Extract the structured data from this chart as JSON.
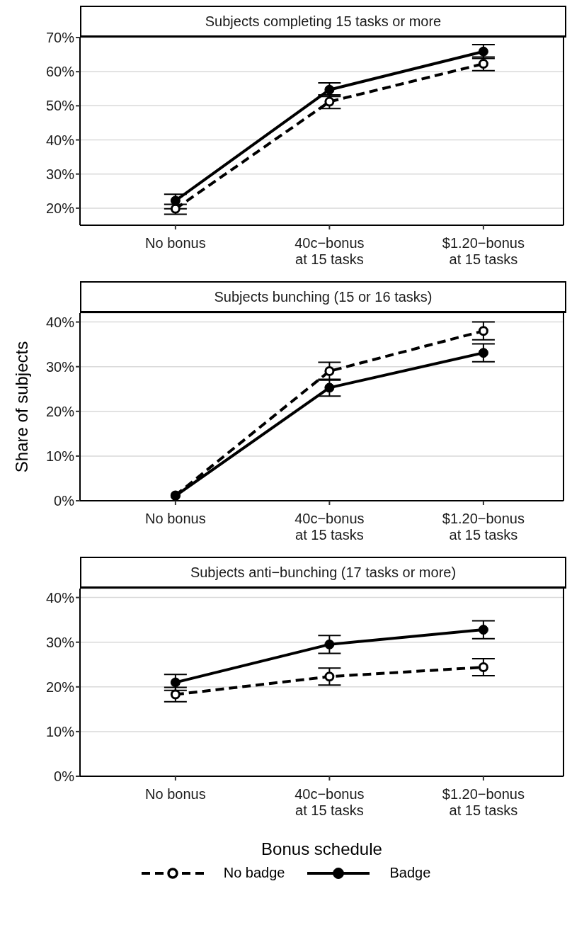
{
  "chart_data": [
    {
      "type": "line",
      "title": "Subjects completing 15 tasks or more",
      "categories": [
        "No bonus",
        "40c−bonus\nat 15 tasks",
        "$1.20−bonus\nat 15 tasks"
      ],
      "series": [
        {
          "color": "#000000",
          "line_style": "dashed",
          "marker": "circle",
          "values": [
            19.8,
            51.2,
            62.3
          ],
          "errors": [
            [
              18.2,
              19.8
            ],
            2,
            2
          ]
        },
        {
          "color": "#000000",
          "line_style": "solid",
          "marker": "circle",
          "values": [
            22.2,
            54.7,
            65.9
          ],
          "errors": [
            [
              21.1,
              24.1
            ],
            2,
            2
          ]
        }
      ],
      "ylim": [
        15,
        70
      ],
      "yticks": [
        {
          "value": 20,
          "label": "20%"
        },
        {
          "value": 30,
          "label": "30%"
        },
        {
          "value": 40,
          "label": "40%"
        },
        {
          "value": 50,
          "label": "50%"
        },
        {
          "value": 60,
          "label": "60%"
        },
        {
          "value": 70,
          "label": "70%"
        }
      ],
      "grid": "y"
    },
    {
      "type": "line",
      "title": "Subjects bunching (15 or 16 tasks)",
      "ylabel": "Share of subjects",
      "categories": [
        "No bonus",
        "40c−bonus\nat 15 tasks",
        "$1.20−bonus\nat 15 tasks"
      ],
      "series": [
        {
          "color": "#000000",
          "line_style": "dashed",
          "marker": "circle",
          "values": [
            1.2,
            29,
            38
          ],
          "errors": [
            null,
            2,
            2
          ]
        },
        {
          "color": "#000000",
          "line_style": "solid",
          "marker": "circle",
          "values": [
            1.1,
            25.3,
            33.1
          ],
          "errors": [
            null,
            1.9,
            2
          ]
        }
      ],
      "ylim": [
        0,
        42
      ],
      "yticks": [
        {
          "value": 0,
          "label": "0%"
        },
        {
          "value": 10,
          "label": "10%"
        },
        {
          "value": 20,
          "label": "20%"
        },
        {
          "value": 30,
          "label": "30%"
        },
        {
          "value": 40,
          "label": "40%"
        }
      ],
      "grid": "y"
    },
    {
      "type": "line",
      "title": "Subjects anti−bunching (17 tasks or more)",
      "xlabel": "Bonus schedule",
      "categories": [
        "No bonus",
        "40c−bonus\nat 15 tasks",
        "$1.20−bonus\nat 15 tasks"
      ],
      "series": [
        {
          "name": "No badge",
          "color": "#000000",
          "line_style": "dashed",
          "marker": "circle",
          "values": [
            18.3,
            22.3,
            24.4
          ],
          "errors": [
            1.6,
            1.9,
            1.9
          ]
        },
        {
          "name": "Badge",
          "color": "#000000",
          "line_style": "solid",
          "marker": "circle",
          "values": [
            21,
            29.5,
            32.8
          ],
          "errors": [
            1.8,
            2,
            2
          ]
        }
      ],
      "ylim": [
        0,
        42
      ],
      "yticks": [
        {
          "value": 0,
          "label": "0%"
        },
        {
          "value": 10,
          "label": "10%"
        },
        {
          "value": 20,
          "label": "20%"
        },
        {
          "value": 30,
          "label": "30%"
        },
        {
          "value": 40,
          "label": "40%"
        }
      ],
      "grid": "y",
      "legend": "bottom"
    }
  ]
}
